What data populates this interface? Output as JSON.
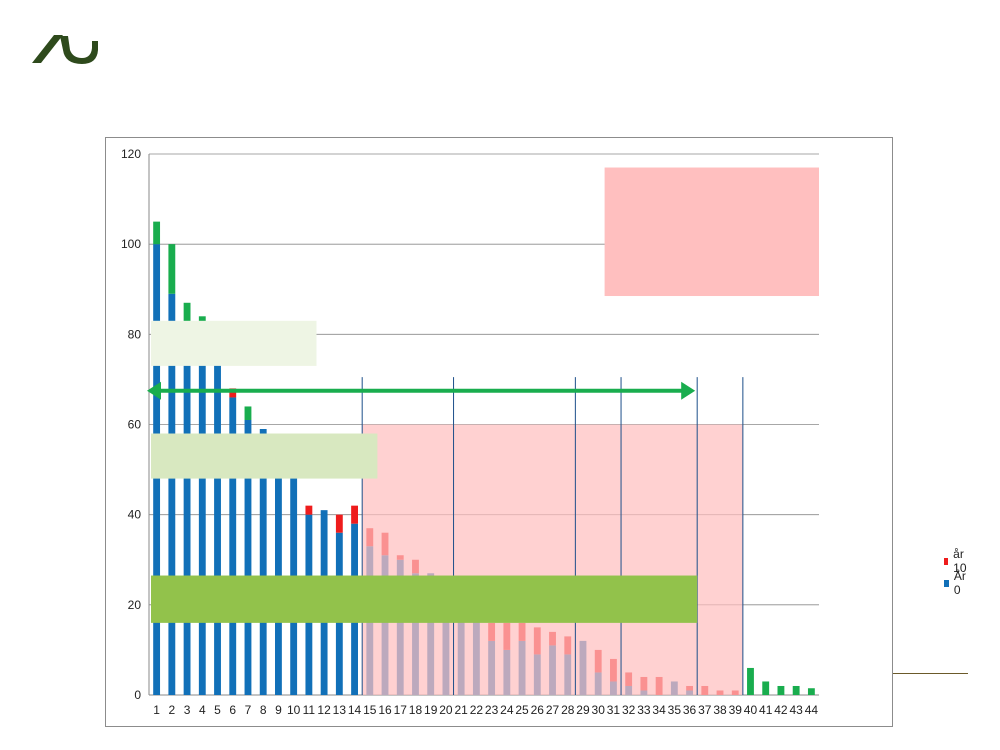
{
  "colors": {
    "aar0": "#1170b8",
    "aar10": "#ee1c1c",
    "green": "#19ad4e",
    "overlay_pink": "#ffbfbf",
    "box_pale": "#eef5e4",
    "box_light": "#d8e8c0",
    "box_mid": "#92c24b",
    "arrow": "#19ad4e",
    "vline": "#1c4f8a",
    "logo": "#2e4a1c"
  },
  "chart_data": {
    "type": "bar",
    "stacked": true,
    "categories": [
      "1",
      "2",
      "3",
      "4",
      "5",
      "6",
      "7",
      "8",
      "9",
      "10",
      "11",
      "12",
      "13",
      "14",
      "15",
      "16",
      "17",
      "18",
      "19",
      "20",
      "21",
      "22",
      "23",
      "24",
      "25",
      "26",
      "27",
      "28",
      "29",
      "30",
      "31",
      "32",
      "33",
      "34",
      "35",
      "36",
      "37",
      "38",
      "39",
      "40",
      "41",
      "42",
      "43",
      "44"
    ],
    "ylim": [
      0,
      120
    ],
    "yticks": [
      "0",
      "20",
      "40",
      "60",
      "80",
      "100",
      "120"
    ],
    "grid": true,
    "legend_position": "right",
    "series": [
      {
        "name": "År 0",
        "color": "#1170b8",
        "values": [
          100,
          89,
          82,
          80,
          76,
          66,
          61,
          59,
          57,
          52,
          40,
          41,
          36,
          38,
          33,
          31,
          30,
          27,
          27,
          25,
          23,
          20,
          12,
          10,
          12,
          9,
          11,
          9,
          12,
          5,
          3,
          2,
          1,
          0,
          3,
          1,
          0,
          0,
          0,
          0,
          0,
          0,
          0,
          0
        ]
      },
      {
        "name": "år 10",
        "color": "#ee1c1c",
        "values": [
          0,
          0,
          0,
          0,
          0,
          2,
          0,
          0,
          0,
          0,
          2,
          0,
          4,
          4,
          4,
          5,
          1,
          3,
          0,
          1,
          2,
          4,
          4,
          6,
          4,
          6,
          3,
          4,
          0,
          5,
          5,
          3,
          3,
          4,
          0,
          1,
          2,
          1,
          1,
          0,
          0,
          0,
          0,
          0
        ]
      },
      {
        "name": "",
        "color": "#19ad4e",
        "values": [
          5,
          11,
          5,
          4,
          0,
          0,
          3,
          0,
          0,
          0,
          0,
          0,
          0,
          0,
          0,
          0,
          0,
          0,
          0,
          0,
          0,
          0,
          0,
          0,
          0,
          0,
          0,
          0,
          0,
          0,
          0,
          0,
          0,
          0,
          0,
          0,
          0,
          0,
          0,
          6,
          3,
          2,
          2,
          1.5
        ]
      }
    ],
    "annotations": {
      "pink_region": {
        "from_category": 15,
        "to_category": 39,
        "y_top": 60
      },
      "vertical_lines_after_category": [
        14,
        20,
        28,
        31,
        36,
        39
      ],
      "double_arrow": {
        "from_category": 0,
        "to_category": 36,
        "y": 67.5
      },
      "pale_box": {
        "from_category": 1,
        "to_category": 11,
        "y_bottom": 73,
        "y_top": 83
      },
      "light_box": {
        "from_category": 1,
        "to_category": 15,
        "y_bottom": 48,
        "y_top": 58
      },
      "mid_box": {
        "from_category": 1,
        "to_category": 36,
        "y_bottom": 16,
        "y_top": 26.5
      },
      "top_right_box": {
        "x_frac_start": 0.68,
        "x_frac_end": 1.0,
        "y_bottom": 88.5,
        "y_top": 117
      }
    }
  }
}
